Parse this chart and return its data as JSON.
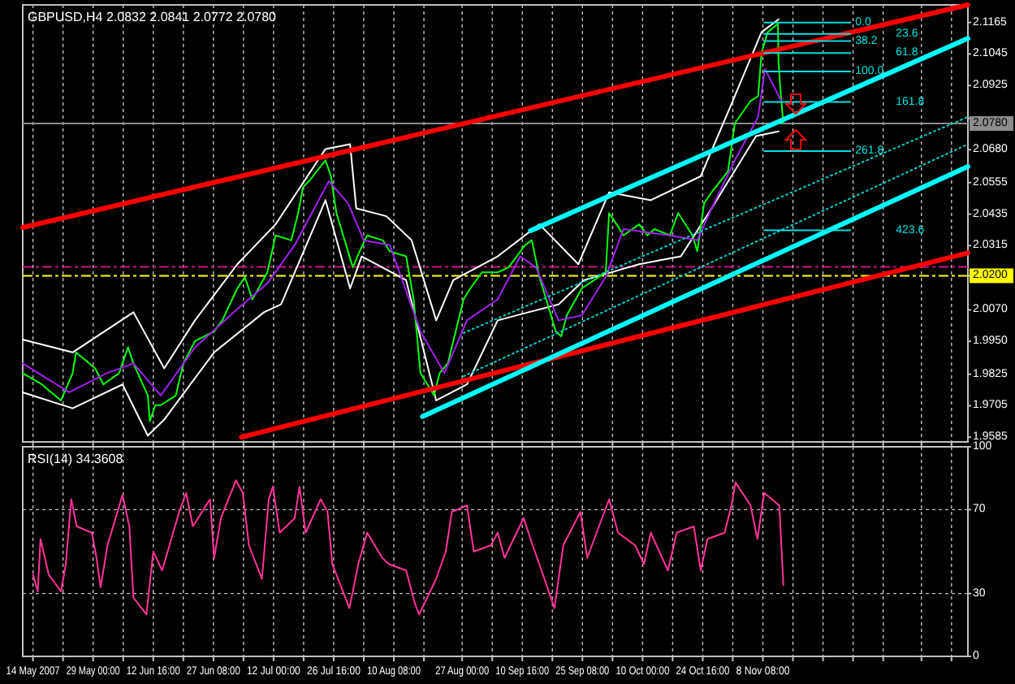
{
  "chart_data": [
    {
      "type": "line",
      "title": "GBPUSD,H4 2.0832 2.0841 2.0772 2.0780",
      "tick_labels": "y",
      "grid": "x",
      "xlim": [
        "2007-05-11T20:00",
        "2007-12-28T08:00"
      ],
      "ylim": [
        1.9567,
        2.1232
      ],
      "xticks": [
        {
          "value": "2007-05-14T08:00",
          "label": null
        },
        {
          "value": "2007-05-21T16:00",
          "label": null
        },
        {
          "value": "2007-05-29T00:00",
          "label": null
        },
        {
          "value": "2007-06-05T08:00",
          "label": null
        },
        {
          "value": "2007-06-12T16:00",
          "label": null
        },
        {
          "value": "2007-06-20T00:00",
          "label": null
        },
        {
          "value": "2007-06-27T08:00",
          "label": null
        },
        {
          "value": "2007-07-04T16:00",
          "label": null
        },
        {
          "value": "2007-07-12T00:00",
          "label": null
        },
        {
          "value": "2007-07-19T08:00",
          "label": null
        },
        {
          "value": "2007-07-26T16:00",
          "label": null
        },
        {
          "value": "2007-08-03T00:00",
          "label": null
        },
        {
          "value": "2007-08-10T08:00",
          "label": null
        },
        {
          "value": "2007-08-17T16:00",
          "label": null
        },
        {
          "value": "2007-08-27T00:00",
          "label": null
        },
        {
          "value": "2007-09-03T08:00",
          "label": null
        },
        {
          "value": "2007-09-10T16:00",
          "label": null
        },
        {
          "value": "2007-09-18T00:00",
          "label": null
        },
        {
          "value": "2007-09-25T08:00",
          "label": null
        },
        {
          "value": "2007-10-02T16:00",
          "label": null
        },
        {
          "value": "2007-10-10T00:00",
          "label": null
        },
        {
          "value": "2007-10-17T08:00",
          "label": null
        },
        {
          "value": "2007-10-24T16:00",
          "label": null
        },
        {
          "value": "2007-11-01T00:00",
          "label": null
        },
        {
          "value": "2007-11-08T08:00",
          "label": null
        },
        {
          "value": "2007-11-15T16:00",
          "label": null
        },
        {
          "value": "2007-11-23T00:00",
          "label": null
        },
        {
          "value": "2007-11-30T08:00",
          "label": null
        },
        {
          "value": "2007-12-07T16:00",
          "label": null
        },
        {
          "value": "2007-12-17T00:00",
          "label": null
        },
        {
          "value": "2007-12-24T08:00",
          "label": null
        }
      ],
      "yticks": [
        {
          "value": 2.1165,
          "label": "2.1165"
        },
        {
          "value": 2.1045,
          "label": "2.1045"
        },
        {
          "value": 2.0925,
          "label": "2.0925"
        },
        {
          "value": 2.08,
          "label": null
        },
        {
          "value": 2.068,
          "label": "2.0680"
        },
        {
          "value": 2.0555,
          "label": "2.0555"
        },
        {
          "value": 2.0435,
          "label": "2.0435"
        },
        {
          "value": 2.0315,
          "label": "2.0315"
        },
        {
          "value": 2.02,
          "label": null
        },
        {
          "value": 2.007,
          "label": "2.0070"
        },
        {
          "value": 1.995,
          "label": "1.9950"
        },
        {
          "value": 1.9825,
          "label": "1.9825"
        },
        {
          "value": 1.9705,
          "label": "1.9705"
        },
        {
          "value": 1.9585,
          "label": "1.9585"
        }
      ],
      "series": [
        {
          "color": "#ffffff",
          "x": [
            "2007-05-11T20:00",
            "2007-05-24T00:00",
            "2007-06-07T20:00",
            "2007-06-15T08:00",
            "2007-06-22T20:00",
            "2007-07-03T04:00",
            "2007-07-12T12:00",
            "2007-07-24T16:00",
            "2007-07-30T16:00",
            "2007-08-01T04:00",
            "2007-08-08T12:00",
            "2007-08-14T16:00",
            "2007-08-20T16:00",
            "2007-08-24T20:00",
            "2007-09-04T16:00",
            "2007-09-14T20:00",
            "2007-09-24T08:00",
            "2007-10-01T20:00",
            "2007-10-12T00:00",
            "2007-10-24T04:00",
            "2007-10-31T16:00",
            "2007-11-08T00:00",
            "2007-11-12T04:00"
          ],
          "values": [
            1.9957,
            1.9908,
            2.0061,
            1.9847,
            2.003,
            2.0244,
            2.0396,
            2.0683,
            2.0701,
            2.0457,
            2.0427,
            2.0335,
            2.003,
            2.0183,
            2.0274,
            2.0396,
            2.0244,
            2.0518,
            2.0488,
            2.0579,
            2.0854,
            2.1128,
            2.1177
          ]
        },
        {
          "color": "#ffffff",
          "x": [
            "2007-05-11T20:00",
            "2007-05-24T00:00",
            "2007-06-05T04:00",
            "2007-06-11T08:00",
            "2007-06-15T08:00",
            "2007-06-27T12:00",
            "2007-07-09T16:00",
            "2007-07-13T20:00",
            "2007-07-24T16:00",
            "2007-07-30T16:00",
            "2007-08-02T12:00",
            "2007-08-13T08:00",
            "2007-08-20T16:00",
            "2007-08-28T04:00",
            "2007-09-04T16:00",
            "2007-09-12T04:00",
            "2007-09-19T12:00",
            "2007-09-25T16:00",
            "2007-10-09T04:00",
            "2007-10-19T08:00",
            "2007-10-26T20:00",
            "2007-11-06T16:00",
            "2007-11-12T04:00"
          ],
          "values": [
            1.9756,
            1.9695,
            1.9786,
            1.9591,
            1.9652,
            1.9908,
            2.0061,
            2.0091,
            2.0488,
            2.0152,
            2.0274,
            2.0183,
            1.9725,
            1.9786,
            2.003,
            2.0061,
            2.0091,
            2.0183,
            2.0244,
            2.0274,
            2.0457,
            2.0732,
            2.075
          ]
        },
        {
          "color": "#00ff00",
          "x": [
            "2007-05-11T20:00",
            "2007-05-16T12:00",
            "2007-05-21T04:00",
            "2007-05-24T00:00",
            "2007-05-24T20:00",
            "2007-05-29T12:00",
            "2007-05-31T12:00",
            "2007-06-04T08:00",
            "2007-06-06T12:00",
            "2007-06-07T20:00",
            "2007-06-11T08:00",
            "2007-06-11T20:00",
            "2007-06-13T04:00",
            "2007-06-14T12:00",
            "2007-06-18T04:00",
            "2007-06-20T00:00",
            "2007-06-22T20:00",
            "2007-06-27T12:00",
            "2007-06-29T12:00",
            "2007-07-03T04:00",
            "2007-07-05T00:00",
            "2007-07-06T20:00",
            "2007-07-10T12:00",
            "2007-07-12T12:00",
            "2007-07-16T08:00",
            "2007-07-18T00:00",
            "2007-07-19T04:00",
            "2007-07-20T16:00",
            "2007-07-24T16:00",
            "2007-07-26T00:00",
            "2007-07-27T08:00",
            "2007-07-31T08:00",
            "2007-08-02T00:00",
            "2007-08-03T20:00",
            "2007-08-07T16:00",
            "2007-08-09T08:00",
            "2007-08-13T08:00",
            "2007-08-15T04:00",
            "2007-08-16T20:00",
            "2007-08-20T04:00",
            "2007-08-21T12:00",
            "2007-08-23T12:00",
            "2007-08-27T08:00",
            "2007-08-29T00:00",
            "2007-08-31T20:00",
            "2007-09-04T16:00",
            "2007-09-07T08:00",
            "2007-09-11T08:00",
            "2007-09-13T00:00",
            "2007-09-14T20:00",
            "2007-09-18T20:00",
            "2007-09-20T04:00",
            "2007-09-21T12:00",
            "2007-09-25T04:00",
            "2007-09-27T00:00",
            "2007-10-01T00:00",
            "2007-10-01T20:00",
            "2007-10-03T16:00",
            "2007-10-05T08:00",
            "2007-10-09T04:00",
            "2007-10-11T04:00",
            "2007-10-12T20:00",
            "2007-10-16T16:00",
            "2007-10-18T16:00",
            "2007-10-22T04:00",
            "2007-10-23T08:00",
            "2007-10-25T00:00",
            "2007-10-26T20:00",
            "2007-10-30T20:00",
            "2007-11-01T12:00",
            "2007-11-05T08:00",
            "2007-11-07T04:00",
            "2007-11-08T00:00",
            "2007-11-09T12:00",
            "2007-11-12T00:00",
            "2007-11-12T04:00",
            "2007-11-12T20:00",
            "2007-11-13T08:00"
          ],
          "values": [
            1.9829,
            1.9786,
            1.9725,
            1.9829,
            1.9908,
            1.9847,
            1.9786,
            1.9829,
            1.9927,
            1.9866,
            1.9744,
            1.9646,
            1.9707,
            1.9707,
            1.9744,
            1.9866,
            1.9951,
            1.9988,
            2.003,
            2.0152,
            2.0195,
            2.011,
            2.0213,
            2.0354,
            2.0335,
            2.0439,
            2.0537,
            2.0561,
            2.064,
            2.0579,
            2.0439,
            2.0232,
            2.0293,
            2.0354,
            2.0335,
            2.0293,
            2.0274,
            2.011,
            1.9829,
            1.9744,
            1.9829,
            1.9866,
            2.011,
            2.0152,
            2.0213,
            2.0213,
            2.0232,
            2.0317,
            2.0335,
            2.0195,
            1.9988,
            1.9969,
            2.0049,
            2.0152,
            2.0171,
            2.0213,
            2.0439,
            2.0396,
            2.0354,
            2.0396,
            2.0354,
            2.0378,
            2.0354,
            2.0439,
            2.0354,
            2.0293,
            2.0476,
            2.0518,
            2.0598,
            2.0781,
            2.0866,
            2.0884,
            2.1049,
            2.1128,
            2.116,
            2.1006,
            2.0866,
            2.078
          ]
        },
        {
          "color": "#a020f0",
          "x": [
            "2007-05-11T20:00",
            "2007-05-23T04:00",
            "2007-06-01T08:00",
            "2007-06-07T20:00",
            "2007-06-14T12:00",
            "2007-06-22T20:00",
            "2007-07-03T04:00",
            "2007-07-10T12:00",
            "2007-07-17T04:00",
            "2007-07-25T12:00",
            "2007-07-30T04:00",
            "2007-08-03T00:00",
            "2007-08-09T08:00",
            "2007-08-16T20:00",
            "2007-08-22T16:00",
            "2007-08-28T04:00",
            "2007-09-04T16:00",
            "2007-09-10T04:00",
            "2007-09-14T00:00",
            "2007-09-19T12:00",
            "2007-09-25T04:00",
            "2007-10-01T00:00",
            "2007-10-05T08:00",
            "2007-10-16T16:00",
            "2007-10-23T08:00",
            "2007-10-26T20:00",
            "2007-11-01T12:00",
            "2007-11-07T04:00",
            "2007-11-08T20:00",
            "2007-11-12T20:00"
          ],
          "values": [
            1.9866,
            1.9756,
            1.9829,
            1.9866,
            1.9744,
            1.9927,
            2.0073,
            2.0171,
            2.0317,
            2.0561,
            2.0476,
            2.0335,
            2.0317,
            1.9988,
            1.9829,
            2.003,
            2.011,
            2.0274,
            2.0232,
            2.003,
            2.0049,
            2.0195,
            2.0378,
            2.0354,
            2.0335,
            2.0457,
            2.064,
            2.0805,
            2.0988,
            2.0866
          ]
        },
        {
          "color": "#ff0000",
          "x": [
            "2007-05-11T20:00",
            "2007-12-28T08:00"
          ],
          "values": [
            2.0384,
            2.1232
          ]
        },
        {
          "color": "#ff0000",
          "x": [
            "2007-07-04T04:00",
            "2007-12-28T08:00"
          ],
          "values": [
            1.9585,
            2.0287
          ]
        },
        {
          "color": "#00ffff",
          "x": [
            "2007-09-12T16:00",
            "2007-12-28T08:00"
          ],
          "values": [
            2.0372,
            2.1104
          ]
        },
        {
          "color": "#00ffff",
          "x": [
            "2007-08-17T08:00",
            "2007-12-28T08:00"
          ],
          "values": [
            1.9664,
            2.0616
          ]
        },
        {
          "color": "#00cccc",
          "line_style": "dotted",
          "x": [
            "2007-08-27T08:00",
            "2007-12-28T08:00"
          ],
          "values": [
            1.9982,
            2.0805
          ]
        },
        {
          "color": "#00cccc",
          "line_style": "dotted",
          "x": [
            "2007-08-27T08:00",
            "2007-12-28T08:00"
          ],
          "values": [
            1.9817,
            2.0701
          ]
        },
        {
          "name": "0.0",
          "color": "#00e0e0",
          "x": [
            "2007-11-08T16:00",
            "2007-11-29T16:00"
          ],
          "values": [
            2.1165,
            2.1165
          ]
        },
        {
          "name": "23.6",
          "color": "#00e0e0",
          "x": [
            "2007-11-08T16:00",
            "2007-11-29T16:00"
          ],
          "values": [
            2.1121,
            2.1121
          ]
        },
        {
          "name": "38.2",
          "color": "#00e0e0",
          "x": [
            "2007-11-08T16:00",
            "2007-11-29T16:00"
          ],
          "values": [
            2.1094,
            2.1094
          ]
        },
        {
          "name": "61.8",
          "color": "#00e0e0",
          "x": [
            "2007-11-08T16:00",
            "2007-11-29T16:00"
          ],
          "values": [
            2.1049,
            2.1049
          ]
        },
        {
          "name": "100.0",
          "color": "#00e0e0",
          "x": [
            "2007-11-08T16:00",
            "2007-11-29T16:00"
          ],
          "values": [
            2.0978,
            2.0978
          ]
        },
        {
          "name": "161.8",
          "color": "#00e0e0",
          "x": [
            "2007-11-08T16:00",
            "2007-11-29T16:00"
          ],
          "values": [
            2.0862,
            2.0862
          ]
        },
        {
          "name": "261.8",
          "color": "#00e0e0",
          "x": [
            "2007-11-08T16:00",
            "2007-11-29T16:00"
          ],
          "values": [
            2.0675,
            2.0675
          ]
        },
        {
          "name": "423.6",
          "color": "#00e0e0",
          "x": [
            "2007-11-08T16:00",
            "2007-11-29T16:00"
          ],
          "values": [
            2.0373,
            2.0373
          ]
        }
      ],
      "ref_lines": [
        {
          "axis": "y",
          "value": 2.078,
          "label": "2.0780",
          "color": "#8c8c8c"
        },
        {
          "axis": "y",
          "value": 2.0234,
          "color": "#c71585",
          "line_style": "dashed"
        },
        {
          "axis": "y",
          "value": 2.02,
          "label": "2.0200",
          "color": "#ffff00",
          "line_style": "dashed"
        }
      ]
    },
    {
      "type": "line",
      "title": "RSI(14) 34.3608",
      "grid": true,
      "xlim": [
        "2007-05-11T20:00",
        "2007-12-28T08:00"
      ],
      "ylim": [
        0,
        100
      ],
      "yticks": [
        0,
        30,
        70,
        100
      ],
      "xticks": [
        {
          "value": "2007-05-14T08:00",
          "label": "14 May 2007"
        },
        {
          "value": "2007-05-21T16:00",
          "label": null
        },
        {
          "value": "2007-05-29T00:00",
          "label": "29 May 00:00"
        },
        {
          "value": "2007-06-05T08:00",
          "label": null
        },
        {
          "value": "2007-06-12T16:00",
          "label": "12 Jun 16:00"
        },
        {
          "value": "2007-06-20T00:00",
          "label": null
        },
        {
          "value": "2007-06-27T08:00",
          "label": "27 Jun 08:00"
        },
        {
          "value": "2007-07-04T16:00",
          "label": null
        },
        {
          "value": "2007-07-12T00:00",
          "label": "12 Jul 00:00"
        },
        {
          "value": "2007-07-19T08:00",
          "label": null
        },
        {
          "value": "2007-07-26T16:00",
          "label": "26 Jul 16:00"
        },
        {
          "value": "2007-08-03T00:00",
          "label": null
        },
        {
          "value": "2007-08-10T08:00",
          "label": "10 Aug 08:00"
        },
        {
          "value": "2007-08-17T16:00",
          "label": null
        },
        {
          "value": "2007-08-27T00:00",
          "label": "27 Aug 00:00"
        },
        {
          "value": "2007-09-03T08:00",
          "label": null
        },
        {
          "value": "2007-09-10T16:00",
          "label": "10 Sep 16:00"
        },
        {
          "value": "2007-09-18T00:00",
          "label": null
        },
        {
          "value": "2007-09-25T08:00",
          "label": "25 Sep 08:00"
        },
        {
          "value": "2007-10-02T16:00",
          "label": null
        },
        {
          "value": "2007-10-10T00:00",
          "label": "10 Oct 00:00"
        },
        {
          "value": "2007-10-17T08:00",
          "label": null
        },
        {
          "value": "2007-10-24T16:00",
          "label": "24 Oct 16:00"
        },
        {
          "value": "2007-11-01T00:00",
          "label": null
        },
        {
          "value": "2007-11-08T08:00",
          "label": "8 Nov 08:00"
        },
        {
          "value": "2007-11-15T16:00",
          "label": null
        },
        {
          "value": "2007-11-23T00:00",
          "label": null
        },
        {
          "value": "2007-11-30T08:00",
          "label": null
        },
        {
          "value": "2007-12-07T16:00",
          "label": null
        },
        {
          "value": "2007-12-17T00:00",
          "label": null
        },
        {
          "value": "2007-12-24T08:00",
          "label": null
        }
      ],
      "series": [
        {
          "color": "#ff3399",
          "x": [
            "2007-05-14T08:00",
            "2007-05-15T12:00",
            "2007-05-16T04:00",
            "2007-05-18T04:00",
            "2007-05-21T04:00",
            "2007-05-22T08:00",
            "2007-05-23T16:00",
            "2007-05-25T00:00",
            "2007-05-28T16:00",
            "2007-05-29T20:00",
            "2007-05-30T20:00",
            "2007-06-01T12:00",
            "2007-06-05T04:00",
            "2007-06-06T20:00",
            "2007-06-07T20:00",
            "2007-06-11T00:00",
            "2007-06-12T16:00",
            "2007-06-14T20:00",
            "2007-06-19T00:00",
            "2007-06-20T16:00",
            "2007-06-22T08:00",
            "2007-06-26T12:00",
            "2007-06-27T12:00",
            "2007-06-29T04:00",
            "2007-07-02T20:00",
            "2007-07-04T12:00",
            "2007-07-06T00:00",
            "2007-07-09T04:00",
            "2007-07-10T20:00",
            "2007-07-11T20:00",
            "2007-07-13T12:00",
            "2007-07-17T04:00",
            "2007-07-18T08:00",
            "2007-07-19T20:00",
            "2007-07-23T12:00",
            "2007-07-25T04:00",
            "2007-07-26T08:00",
            "2007-07-30T12:00",
            "2007-08-01T16:00",
            "2007-08-03T20:00",
            "2007-08-07T12:00",
            "2007-08-09T04:00",
            "2007-08-13T08:00",
            "2007-08-15T12:00",
            "2007-08-16T12:00",
            "2007-08-20T16:00",
            "2007-08-23T00:00",
            "2007-08-24T12:00",
            "2007-08-28T04:00",
            "2007-08-29T20:00",
            "2007-09-03T00:00",
            "2007-09-04T16:00",
            "2007-09-06T08:00",
            "2007-09-11T00:00",
            "2007-09-13T04:00",
            "2007-09-14T20:00",
            "2007-09-18T12:00",
            "2007-09-20T16:00",
            "2007-09-24T20:00",
            "2007-09-26T12:00",
            "2007-10-01T20:00",
            "2007-10-04T00:00",
            "2007-10-08T04:00",
            "2007-10-10T08:00",
            "2007-10-12T00:00",
            "2007-10-16T04:00",
            "2007-10-18T08:00",
            "2007-10-22T12:00",
            "2007-10-24T04:00",
            "2007-10-25T20:00",
            "2007-10-30T00:00",
            "2007-10-31T16:00",
            "2007-11-01T16:00",
            "2007-11-05T08:00",
            "2007-11-07T00:00",
            "2007-11-08T16:00",
            "2007-11-12T08:00",
            "2007-11-13T08:00"
          ],
          "values": [
            39,
            31,
            56,
            39,
            31,
            44,
            75,
            62,
            59,
            47,
            33,
            53,
            77,
            62,
            28,
            20,
            50,
            41,
            69,
            78,
            62,
            75,
            47,
            66,
            84,
            78,
            53,
            37,
            75,
            81,
            59,
            66,
            81,
            59,
            75,
            69,
            44,
            23,
            44,
            59,
            47,
            44,
            41,
            25,
            20,
            37,
            50,
            69,
            72,
            50,
            53,
            59,
            47,
            66,
            53,
            44,
            23,
            53,
            69,
            47,
            75,
            59,
            53,
            44,
            59,
            41,
            59,
            62,
            41,
            56,
            59,
            72,
            83,
            72,
            56,
            78,
            72,
            34
          ]
        }
      ]
    }
  ]
}
